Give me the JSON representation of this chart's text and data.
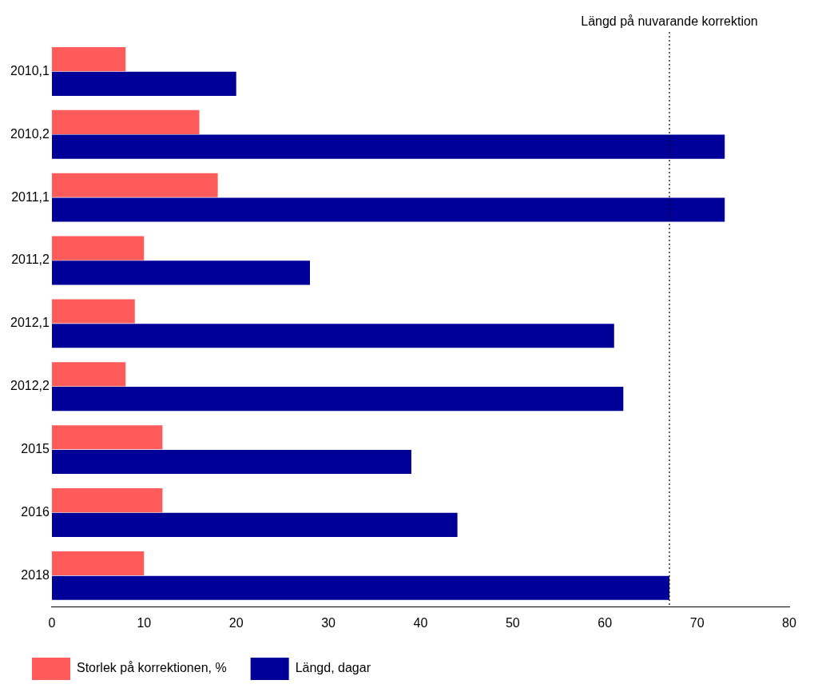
{
  "chart_data": {
    "type": "bar",
    "orientation": "horizontal",
    "categories": [
      "2010,1",
      "2010,2",
      "2011,1",
      "2011,2",
      "2012,1",
      "2012,2",
      "2015",
      "2016",
      "2018"
    ],
    "series": [
      {
        "name": "Storlek på korrektionen, %",
        "color": "#ff5b5b",
        "values": [
          8,
          16,
          18,
          10,
          9,
          8,
          12,
          12,
          10
        ]
      },
      {
        "name": "Längd, dagar",
        "color": "#000099",
        "values": [
          20,
          73,
          73,
          28,
          61,
          62,
          39,
          44,
          67
        ]
      }
    ],
    "xlim": [
      0,
      80
    ],
    "xticks": [
      0,
      10,
      20,
      30,
      40,
      50,
      60,
      70,
      80
    ],
    "ref_lines": [
      {
        "axis": "x",
        "value": 67,
        "label": "Längd på nuvarande korrektion",
        "line_style": "dotted"
      }
    ],
    "grid": false,
    "legend": "bottom"
  }
}
